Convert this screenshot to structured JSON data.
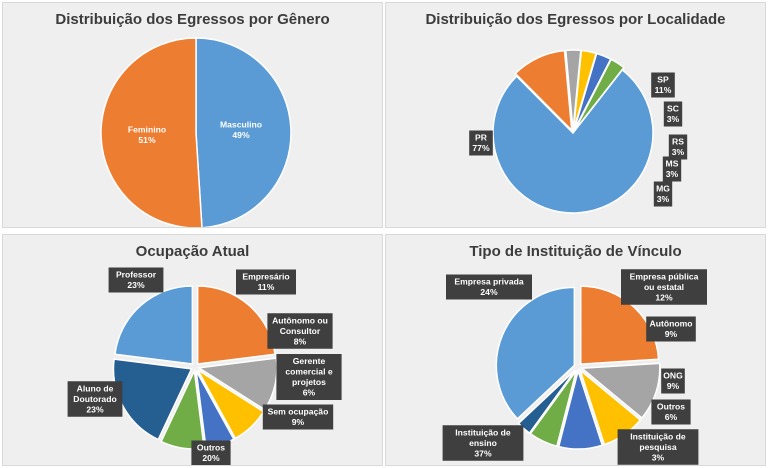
{
  "colors": {
    "blue": "#5b9bd5",
    "orange": "#ed7d31",
    "gray": "#a5a5a5",
    "yellow": "#ffc000",
    "darkblue": "#4472c4",
    "green": "#70ad47",
    "navy": "#255e91",
    "panel_bg": "#efefef",
    "label_bg": "#3f3f3f"
  },
  "chart_data": [
    {
      "type": "pie",
      "title": "Distribuição dos Egressos por Gênero",
      "slices": [
        {
          "label": "Masculino",
          "value": 49,
          "pct": "49%",
          "color": "#5b9bd5"
        },
        {
          "label": "Feminino",
          "value": 51,
          "pct": "51%",
          "color": "#ed7d31"
        }
      ]
    },
    {
      "type": "pie",
      "title": "Distribuição dos Egressos por Localidade",
      "slices": [
        {
          "label": "PR",
          "value": 77,
          "pct": "77%",
          "color": "#5b9bd5"
        },
        {
          "label": "SP",
          "value": 11,
          "pct": "11%",
          "color": "#ed7d31"
        },
        {
          "label": "SC",
          "value": 3,
          "pct": "3%",
          "color": "#a5a5a5"
        },
        {
          "label": "RS",
          "value": 3,
          "pct": "3%",
          "color": "#ffc000"
        },
        {
          "label": "MS",
          "value": 3,
          "pct": "3%",
          "color": "#4472c4"
        },
        {
          "label": "MG",
          "value": 3,
          "pct": "3%",
          "color": "#70ad47"
        }
      ]
    },
    {
      "type": "pie",
      "title": "Ocupação Atual",
      "slices": [
        {
          "label": "Professor",
          "value": 23,
          "pct": "23%",
          "color": "#ed7d31"
        },
        {
          "label": "Empresário",
          "value": 11,
          "pct": "11%",
          "color": "#a5a5a5"
        },
        {
          "label": "Autônomo ou Consultor",
          "value": 8,
          "pct": "8%",
          "color": "#ffc000"
        },
        {
          "label": "Gerente comercial e projetos",
          "value": 6,
          "pct": "6%",
          "color": "#4472c4"
        },
        {
          "label": "Sem ocupação",
          "value": 9,
          "pct": "9%",
          "color": "#70ad47"
        },
        {
          "label": "Outros",
          "value": 20,
          "pct": "20%",
          "color": "#255e91"
        },
        {
          "label": "Aluno de Doutorado",
          "value": 23,
          "pct": "23%",
          "color": "#5b9bd5"
        }
      ]
    },
    {
      "type": "pie",
      "title": "Tipo de Instituição de Vínculo",
      "slices": [
        {
          "label": "Empresa privada",
          "value": 24,
          "pct": "24%",
          "color": "#ed7d31"
        },
        {
          "label": "Empresa pública ou estatal",
          "value": 12,
          "pct": "12%",
          "color": "#a5a5a5"
        },
        {
          "label": "Autônomo",
          "value": 9,
          "pct": "9%",
          "color": "#ffc000"
        },
        {
          "label": "ONG",
          "value": 9,
          "pct": "9%",
          "color": "#4472c4"
        },
        {
          "label": "Outros",
          "value": 6,
          "pct": "6%",
          "color": "#70ad47"
        },
        {
          "label": "Instituição de pesquisa",
          "value": 3,
          "pct": "3%",
          "color": "#255e91"
        },
        {
          "label": "Instituição de ensino",
          "value": 37,
          "pct": "37%",
          "color": "#5b9bd5"
        }
      ]
    }
  ]
}
